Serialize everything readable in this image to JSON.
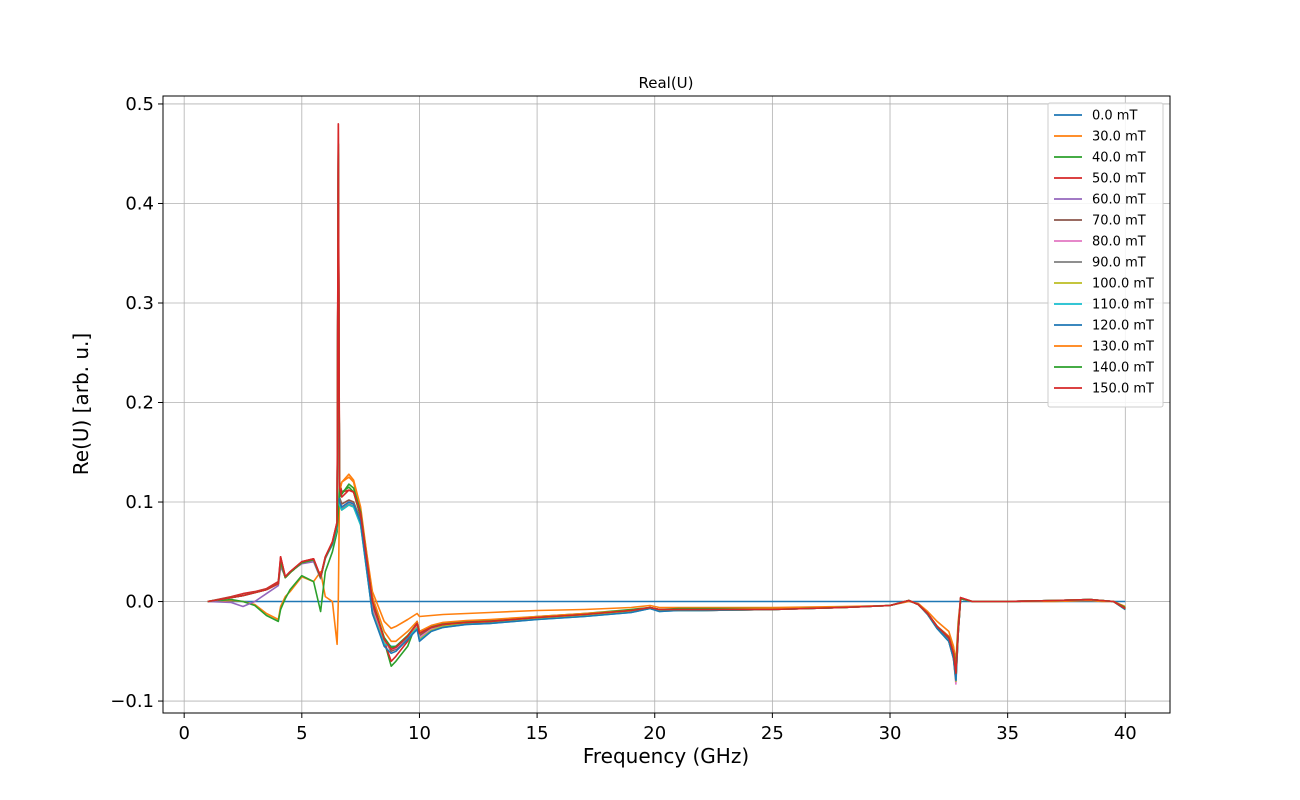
{
  "chart_data": {
    "type": "line",
    "title": "Real(U)",
    "xlabel": "Frequency (GHz)",
    "ylabel": "Re(U) [arb. u.]",
    "xlim": [
      -0.9,
      41.9
    ],
    "ylim": [
      -0.112,
      0.508
    ],
    "xticks": [
      0,
      5,
      10,
      15,
      20,
      25,
      30,
      35,
      40
    ],
    "yticks": [
      -0.1,
      0.0,
      0.1,
      0.2,
      0.3,
      0.4,
      0.5
    ],
    "xtick_labels": [
      "0",
      "5",
      "10",
      "15",
      "20",
      "25",
      "30",
      "35",
      "40"
    ],
    "ytick_labels": [
      "−0.1",
      "0.0",
      "0.1",
      "0.2",
      "0.3",
      "0.4",
      "0.5"
    ],
    "grid": true,
    "legend_position": "top-right",
    "x": [
      1.0,
      2.0,
      2.5,
      3.0,
      3.5,
      4.0,
      4.1,
      4.3,
      4.5,
      5.0,
      5.5,
      5.8,
      6.0,
      6.3,
      6.5,
      6.55,
      6.6,
      6.7,
      7.0,
      7.2,
      7.5,
      8.0,
      8.5,
      8.8,
      9.0,
      9.5,
      9.9,
      10.0,
      10.5,
      11.0,
      12.0,
      13.0,
      15.0,
      17.0,
      19.0,
      19.8,
      20.2,
      21.0,
      22.0,
      25.0,
      28.0,
      30.0,
      30.8,
      31.2,
      31.6,
      32.0,
      32.5,
      32.7,
      32.8,
      32.9,
      33.0,
      33.5,
      35.0,
      37.0,
      38.5,
      39.0,
      39.5,
      40.0
    ],
    "colors": [
      "#1f77b4",
      "#ff7f0e",
      "#2ca02c",
      "#d62728",
      "#9467bd",
      "#8c564b",
      "#e377c2",
      "#7f7f7f",
      "#bcbd22",
      "#17becf",
      "#1f77b4",
      "#ff7f0e",
      "#2ca02c",
      "#d62728"
    ],
    "series": [
      {
        "name": "0.0 mT",
        "values": [
          0.0,
          0.0,
          0.0,
          0.0,
          0.0,
          0.0,
          0.0,
          0.0,
          0.0,
          0.0,
          0.0,
          0.0,
          0.0,
          0.0,
          0.0,
          0.0,
          0.0,
          0.0,
          0.0,
          0.0,
          0.0,
          0.0,
          0.0,
          0.0,
          0.0,
          0.0,
          0.0,
          0.0,
          0.0,
          0.0,
          0.0,
          0.0,
          0.0,
          0.0,
          0.0,
          0.0,
          0.0,
          0.0,
          0.0,
          0.0,
          0.0,
          0.0,
          0.0,
          0.0,
          0.0,
          0.0,
          0.0,
          0.0,
          0.0,
          0.0,
          0.0,
          0.0,
          0.0,
          0.0,
          0.0,
          0.0,
          0.0,
          0.0
        ]
      },
      {
        "name": "30.0 mT",
        "values": [
          0.0,
          0.001,
          0.0,
          -0.003,
          -0.012,
          -0.018,
          -0.005,
          0.005,
          0.01,
          0.025,
          0.02,
          0.03,
          0.005,
          0.0,
          -0.043,
          0.0,
          0.11,
          0.12,
          0.125,
          0.12,
          0.09,
          0.01,
          -0.02,
          -0.027,
          -0.025,
          -0.018,
          -0.012,
          -0.015,
          -0.014,
          -0.013,
          -0.012,
          -0.011,
          -0.009,
          -0.008,
          -0.006,
          -0.004,
          -0.006,
          -0.006,
          -0.006,
          -0.006,
          -0.005,
          -0.004,
          0.0,
          -0.002,
          -0.01,
          -0.02,
          -0.03,
          -0.045,
          -0.06,
          -0.02,
          0.003,
          0.0,
          0.0,
          0.0,
          0.001,
          0.0,
          0.0,
          -0.005
        ]
      },
      {
        "name": "40.0 mT",
        "values": [
          0.0,
          0.002,
          0.0,
          -0.004,
          -0.014,
          -0.02,
          -0.008,
          0.003,
          0.012,
          0.026,
          0.02,
          -0.01,
          0.03,
          0.05,
          0.07,
          0.09,
          0.12,
          0.11,
          0.115,
          0.11,
          0.085,
          0.005,
          -0.04,
          -0.065,
          -0.06,
          -0.045,
          -0.02,
          -0.03,
          -0.025,
          -0.022,
          -0.02,
          -0.019,
          -0.015,
          -0.012,
          -0.008,
          -0.006,
          -0.008,
          -0.007,
          -0.007,
          -0.007,
          -0.006,
          -0.004,
          0.001,
          -0.003,
          -0.012,
          -0.025,
          -0.035,
          -0.05,
          -0.065,
          -0.025,
          0.003,
          0.0,
          0.0,
          0.001,
          0.002,
          0.001,
          0.0,
          -0.006
        ]
      },
      {
        "name": "50.0 mT",
        "values": [
          0.0,
          0.005,
          0.008,
          0.01,
          0.013,
          0.02,
          0.045,
          0.025,
          0.03,
          0.04,
          0.043,
          0.025,
          0.045,
          0.06,
          0.08,
          0.48,
          0.12,
          0.11,
          0.112,
          0.11,
          0.09,
          0.0,
          -0.04,
          -0.06,
          -0.055,
          -0.04,
          -0.02,
          -0.03,
          -0.026,
          -0.023,
          -0.021,
          -0.02,
          -0.016,
          -0.013,
          -0.009,
          -0.006,
          -0.008,
          -0.008,
          -0.008,
          -0.008,
          -0.006,
          -0.004,
          0.001,
          -0.003,
          -0.012,
          -0.025,
          -0.035,
          -0.05,
          -0.07,
          -0.03,
          0.004,
          0.0,
          0.0,
          0.001,
          0.002,
          0.001,
          0.0,
          -0.007
        ]
      },
      {
        "name": "60.0 mT",
        "values": [
          0.0,
          -0.001,
          -0.005,
          0.0,
          0.008,
          0.016,
          0.035,
          0.025,
          0.03,
          0.038,
          0.04,
          0.023,
          0.043,
          0.058,
          0.075,
          0.44,
          0.1,
          0.095,
          0.1,
          0.098,
          0.08,
          -0.01,
          -0.04,
          -0.045,
          -0.045,
          -0.035,
          -0.025,
          -0.035,
          -0.028,
          -0.025,
          -0.022,
          -0.021,
          -0.017,
          -0.014,
          -0.01,
          -0.007,
          -0.009,
          -0.009,
          -0.009,
          -0.008,
          -0.006,
          -0.004,
          0.001,
          -0.003,
          -0.013,
          -0.026,
          -0.038,
          -0.055,
          -0.078,
          -0.03,
          0.003,
          0.0,
          0.0,
          0.001,
          0.002,
          0.001,
          0.0,
          -0.008
        ]
      },
      {
        "name": "70.0 mT",
        "values": [
          0.0,
          0.004,
          0.006,
          0.009,
          0.012,
          0.018,
          0.04,
          0.024,
          0.029,
          0.039,
          0.042,
          0.024,
          0.044,
          0.058,
          0.076,
          0.45,
          0.105,
          0.098,
          0.102,
          0.1,
          0.082,
          -0.005,
          -0.038,
          -0.05,
          -0.048,
          -0.037,
          -0.024,
          -0.034,
          -0.027,
          -0.024,
          -0.022,
          -0.021,
          -0.017,
          -0.014,
          -0.01,
          -0.007,
          -0.009,
          -0.009,
          -0.009,
          -0.008,
          -0.006,
          -0.004,
          0.001,
          -0.003,
          -0.013,
          -0.026,
          -0.037,
          -0.054,
          -0.075,
          -0.03,
          0.003,
          0.0,
          0.0,
          0.001,
          0.002,
          0.001,
          0.0,
          -0.008
        ]
      },
      {
        "name": "80.0 mT",
        "values": [
          0.0,
          0.004,
          0.006,
          0.009,
          0.012,
          0.018,
          0.04,
          0.024,
          0.029,
          0.039,
          0.042,
          0.024,
          0.044,
          0.058,
          0.075,
          0.45,
          0.1,
          0.095,
          0.1,
          0.098,
          0.08,
          -0.008,
          -0.04,
          -0.048,
          -0.047,
          -0.036,
          -0.025,
          -0.036,
          -0.028,
          -0.025,
          -0.022,
          -0.021,
          -0.017,
          -0.014,
          -0.01,
          -0.007,
          -0.009,
          -0.009,
          -0.009,
          -0.008,
          -0.006,
          -0.004,
          0.001,
          -0.003,
          -0.013,
          -0.027,
          -0.04,
          -0.058,
          -0.083,
          -0.032,
          0.003,
          0.0,
          0.0,
          0.001,
          0.002,
          0.001,
          0.0,
          -0.008
        ]
      },
      {
        "name": "90.0 mT",
        "values": [
          0.0,
          0.004,
          0.006,
          0.009,
          0.012,
          0.018,
          0.04,
          0.024,
          0.029,
          0.039,
          0.042,
          0.024,
          0.044,
          0.057,
          0.074,
          0.45,
          0.098,
          0.093,
          0.098,
          0.096,
          0.078,
          -0.01,
          -0.042,
          -0.046,
          -0.046,
          -0.036,
          -0.026,
          -0.038,
          -0.029,
          -0.025,
          -0.022,
          -0.021,
          -0.017,
          -0.014,
          -0.01,
          -0.007,
          -0.009,
          -0.009,
          -0.009,
          -0.008,
          -0.006,
          -0.004,
          0.001,
          -0.003,
          -0.013,
          -0.027,
          -0.04,
          -0.057,
          -0.08,
          -0.032,
          0.003,
          0.0,
          0.0,
          0.001,
          0.002,
          0.001,
          0.0,
          -0.008
        ]
      },
      {
        "name": "100.0 mT",
        "values": [
          0.0,
          0.004,
          0.006,
          0.009,
          0.012,
          0.018,
          0.04,
          0.024,
          0.029,
          0.039,
          0.042,
          0.024,
          0.044,
          0.057,
          0.074,
          0.45,
          0.097,
          0.092,
          0.097,
          0.095,
          0.077,
          -0.011,
          -0.042,
          -0.045,
          -0.045,
          -0.036,
          -0.026,
          -0.038,
          -0.029,
          -0.025,
          -0.022,
          -0.021,
          -0.017,
          -0.014,
          -0.01,
          -0.007,
          -0.009,
          -0.009,
          -0.009,
          -0.008,
          -0.006,
          -0.004,
          0.001,
          -0.003,
          -0.013,
          -0.027,
          -0.04,
          -0.057,
          -0.08,
          -0.032,
          0.003,
          0.0,
          0.0,
          0.001,
          0.002,
          0.001,
          0.0,
          -0.008
        ]
      },
      {
        "name": "110.0 mT",
        "values": [
          0.0,
          0.004,
          0.006,
          0.009,
          0.012,
          0.018,
          0.04,
          0.024,
          0.029,
          0.039,
          0.042,
          0.024,
          0.044,
          0.057,
          0.074,
          0.45,
          0.097,
          0.092,
          0.097,
          0.095,
          0.077,
          -0.012,
          -0.043,
          -0.045,
          -0.045,
          -0.036,
          -0.027,
          -0.039,
          -0.03,
          -0.026,
          -0.023,
          -0.022,
          -0.018,
          -0.015,
          -0.011,
          -0.007,
          -0.01,
          -0.009,
          -0.009,
          -0.008,
          -0.006,
          -0.004,
          0.001,
          -0.003,
          -0.013,
          -0.027,
          -0.04,
          -0.057,
          -0.079,
          -0.032,
          0.003,
          0.0,
          0.0,
          0.001,
          0.002,
          0.001,
          0.0,
          -0.008
        ]
      },
      {
        "name": "120.0 mT",
        "values": [
          0.0,
          0.004,
          0.006,
          0.009,
          0.012,
          0.018,
          0.04,
          0.024,
          0.029,
          0.039,
          0.042,
          0.024,
          0.044,
          0.058,
          0.076,
          0.46,
          0.1,
          0.095,
          0.1,
          0.098,
          0.08,
          -0.012,
          -0.045,
          -0.052,
          -0.05,
          -0.038,
          -0.028,
          -0.04,
          -0.03,
          -0.026,
          -0.023,
          -0.022,
          -0.018,
          -0.015,
          -0.011,
          -0.007,
          -0.01,
          -0.009,
          -0.009,
          -0.008,
          -0.006,
          -0.004,
          0.001,
          -0.003,
          -0.013,
          -0.027,
          -0.04,
          -0.057,
          -0.079,
          -0.032,
          0.003,
          0.0,
          0.0,
          0.001,
          0.002,
          0.001,
          0.0,
          -0.008
        ]
      },
      {
        "name": "130.0 mT",
        "values": [
          0.0,
          0.004,
          0.006,
          0.009,
          0.012,
          0.018,
          0.04,
          0.024,
          0.029,
          0.039,
          0.042,
          0.024,
          0.044,
          0.06,
          0.078,
          0.46,
          0.11,
          0.12,
          0.128,
          0.122,
          0.095,
          0.005,
          -0.03,
          -0.04,
          -0.04,
          -0.03,
          -0.02,
          -0.03,
          -0.024,
          -0.021,
          -0.019,
          -0.018,
          -0.015,
          -0.012,
          -0.009,
          -0.006,
          -0.008,
          -0.008,
          -0.008,
          -0.007,
          -0.006,
          -0.004,
          0.001,
          -0.003,
          -0.012,
          -0.025,
          -0.035,
          -0.05,
          -0.07,
          -0.03,
          0.003,
          0.0,
          0.0,
          0.001,
          0.002,
          0.001,
          0.0,
          -0.007
        ]
      },
      {
        "name": "140.0 mT",
        "values": [
          0.0,
          0.004,
          0.006,
          0.009,
          0.012,
          0.018,
          0.04,
          0.024,
          0.029,
          0.039,
          0.042,
          0.024,
          0.044,
          0.059,
          0.077,
          0.46,
          0.105,
          0.108,
          0.118,
          0.114,
          0.09,
          0.0,
          -0.036,
          -0.046,
          -0.045,
          -0.034,
          -0.022,
          -0.032,
          -0.026,
          -0.023,
          -0.021,
          -0.02,
          -0.016,
          -0.013,
          -0.009,
          -0.006,
          -0.008,
          -0.008,
          -0.008,
          -0.008,
          -0.006,
          -0.004,
          0.001,
          -0.003,
          -0.012,
          -0.025,
          -0.036,
          -0.052,
          -0.072,
          -0.03,
          0.003,
          0.0,
          0.0,
          0.001,
          0.002,
          0.001,
          0.0,
          -0.007
        ]
      },
      {
        "name": "150.0 mT",
        "values": [
          0.0,
          0.004,
          0.006,
          0.009,
          0.012,
          0.018,
          0.045,
          0.025,
          0.03,
          0.04,
          0.043,
          0.025,
          0.045,
          0.06,
          0.08,
          0.48,
          0.115,
          0.105,
          0.112,
          0.11,
          0.088,
          0.0,
          -0.038,
          -0.048,
          -0.046,
          -0.035,
          -0.022,
          -0.032,
          -0.026,
          -0.023,
          -0.021,
          -0.02,
          -0.016,
          -0.013,
          -0.009,
          -0.006,
          -0.008,
          -0.008,
          -0.008,
          -0.008,
          -0.006,
          -0.004,
          0.001,
          -0.003,
          -0.012,
          -0.025,
          -0.036,
          -0.052,
          -0.072,
          -0.03,
          0.004,
          0.0,
          0.0,
          0.001,
          0.002,
          0.001,
          0.0,
          -0.007
        ]
      }
    ]
  }
}
